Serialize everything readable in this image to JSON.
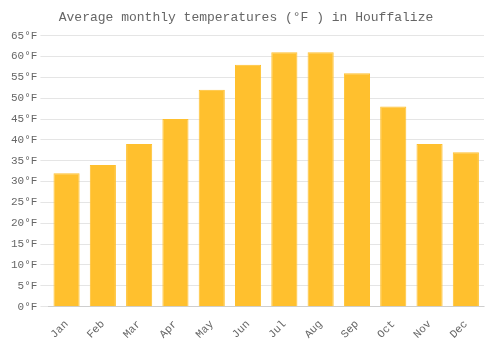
{
  "chart_data": {
    "type": "bar",
    "title": "Average monthly temperatures (°F ) in Houffalize",
    "categories": [
      "Jan",
      "Feb",
      "Mar",
      "Apr",
      "May",
      "Jun",
      "Jul",
      "Aug",
      "Sep",
      "Oct",
      "Nov",
      "Dec"
    ],
    "values": [
      32,
      34,
      39,
      45,
      52,
      58,
      61,
      61,
      56,
      48,
      39,
      37
    ],
    "color": "#FFC02E",
    "ylim": [
      0,
      65
    ],
    "yticks": [
      {
        "value": 0,
        "label": "0°F"
      },
      {
        "value": 5,
        "label": "5°F"
      },
      {
        "value": 10,
        "label": "10°F"
      },
      {
        "value": 15,
        "label": "15°F"
      },
      {
        "value": 20,
        "label": "20°F"
      },
      {
        "value": 25,
        "label": "25°F"
      },
      {
        "value": 30,
        "label": "30°F"
      },
      {
        "value": 35,
        "label": "35°F"
      },
      {
        "value": 40,
        "label": "40°F"
      },
      {
        "value": 45,
        "label": "45°F"
      },
      {
        "value": 50,
        "label": "50°F"
      },
      {
        "value": 55,
        "label": "55°F"
      },
      {
        "value": 60,
        "label": "60°F"
      },
      {
        "value": 65,
        "label": "65°F"
      }
    ],
    "grid": true
  }
}
